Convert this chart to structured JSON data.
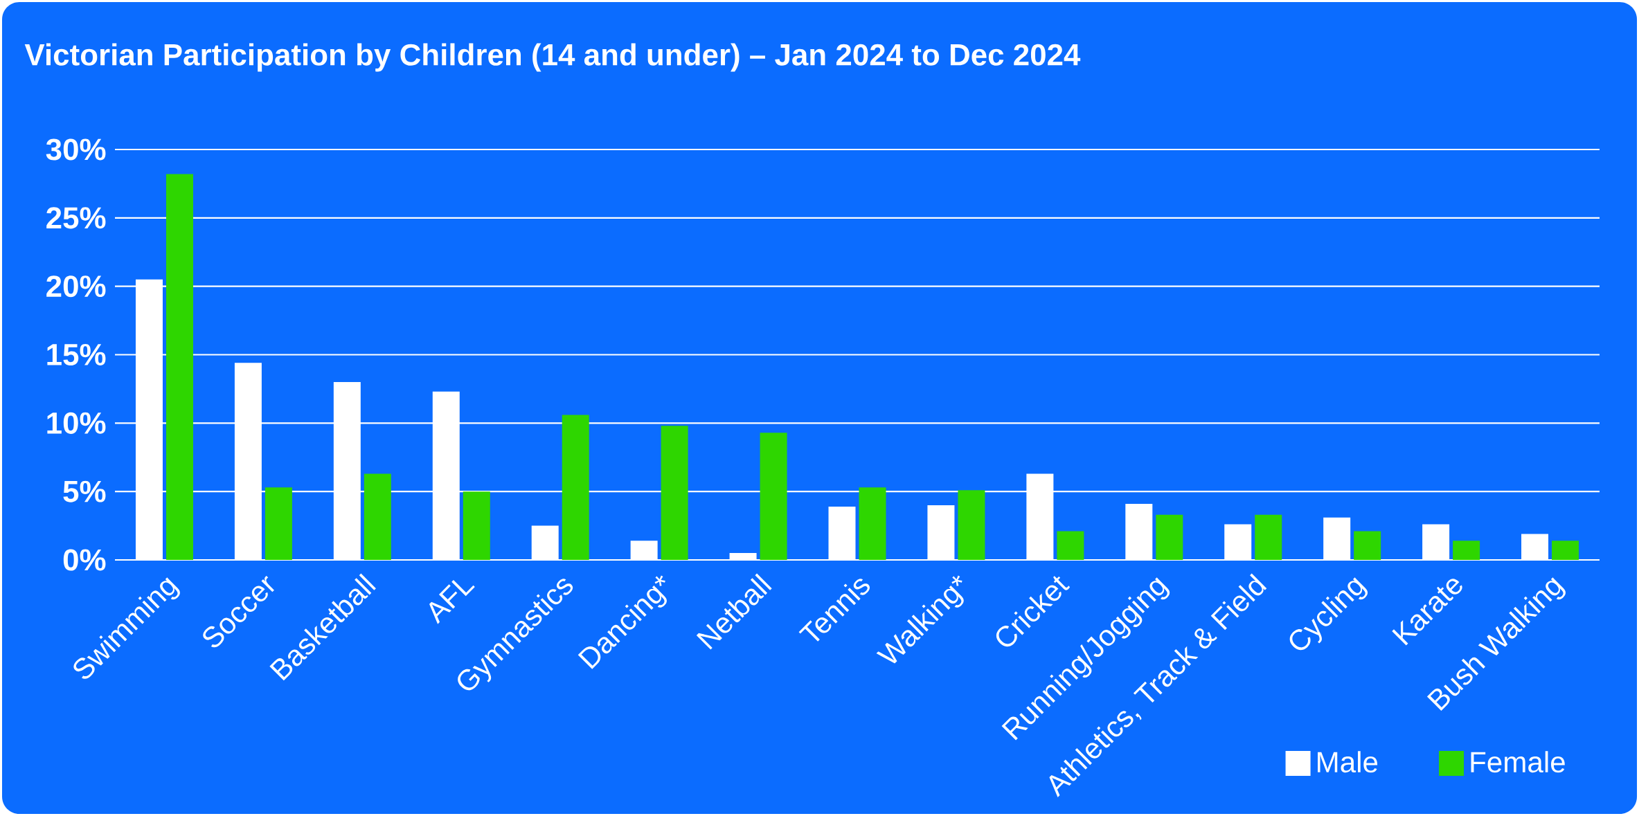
{
  "chart_data": {
    "type": "bar",
    "title": "Victorian Participation by Children (14 and under) – Jan 2024 to Dec 2024",
    "categories": [
      "Swimming",
      "Soccer",
      "Basketball",
      "AFL",
      "Gymnastics",
      "Dancing*",
      "Netball",
      "Tennis",
      "Walking*",
      "Cricket",
      "Running/Jogging",
      "Athletics, Track & Field",
      "Cycling",
      "Karate",
      "Bush Walking"
    ],
    "series": [
      {
        "name": "Male",
        "color": "#ffffff",
        "values": [
          20.5,
          14.4,
          13.0,
          12.3,
          2.5,
          1.4,
          0.5,
          3.9,
          4.0,
          6.3,
          4.1,
          2.6,
          3.1,
          2.6,
          1.9
        ]
      },
      {
        "name": "Female",
        "color": "#2ed600",
        "values": [
          28.2,
          5.3,
          6.3,
          5.0,
          10.6,
          9.8,
          9.3,
          5.3,
          5.1,
          2.1,
          3.3,
          3.3,
          2.1,
          1.4,
          1.4
        ]
      }
    ],
    "ylim": [
      0,
      30
    ],
    "yticks": [
      {
        "value": 0,
        "label": "0%"
      },
      {
        "value": 5,
        "label": "5%"
      },
      {
        "value": 10,
        "label": "10%"
      },
      {
        "value": 15,
        "label": "15%"
      },
      {
        "value": 20,
        "label": "20%"
      },
      {
        "value": 25,
        "label": "25%"
      },
      {
        "value": 30,
        "label": "30%"
      }
    ],
    "grid": "y",
    "legend": "bottom right"
  }
}
